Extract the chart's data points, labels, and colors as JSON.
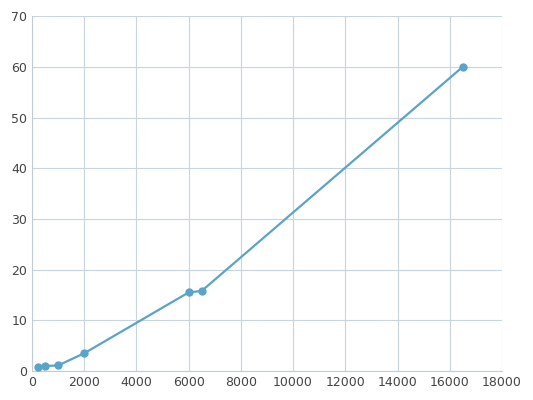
{
  "x": [
    250,
    500,
    1000,
    2000,
    6000,
    6500,
    16500
  ],
  "y": [
    0.8,
    1.0,
    1.1,
    3.5,
    15.5,
    15.8,
    60.0
  ],
  "line_color": "#5ba3c9",
  "marker_color": "#5ba3c9",
  "marker_size": 5,
  "linewidth": 1.6,
  "xlim": [
    0,
    18000
  ],
  "ylim": [
    0,
    70
  ],
  "xticks": [
    0,
    2000,
    4000,
    6000,
    8000,
    10000,
    12000,
    14000,
    16000,
    18000
  ],
  "yticks": [
    0,
    10,
    20,
    30,
    40,
    50,
    60,
    70
  ],
  "grid_color": "#c8d4de",
  "background_color": "#ffffff",
  "tick_labelsize": 9
}
